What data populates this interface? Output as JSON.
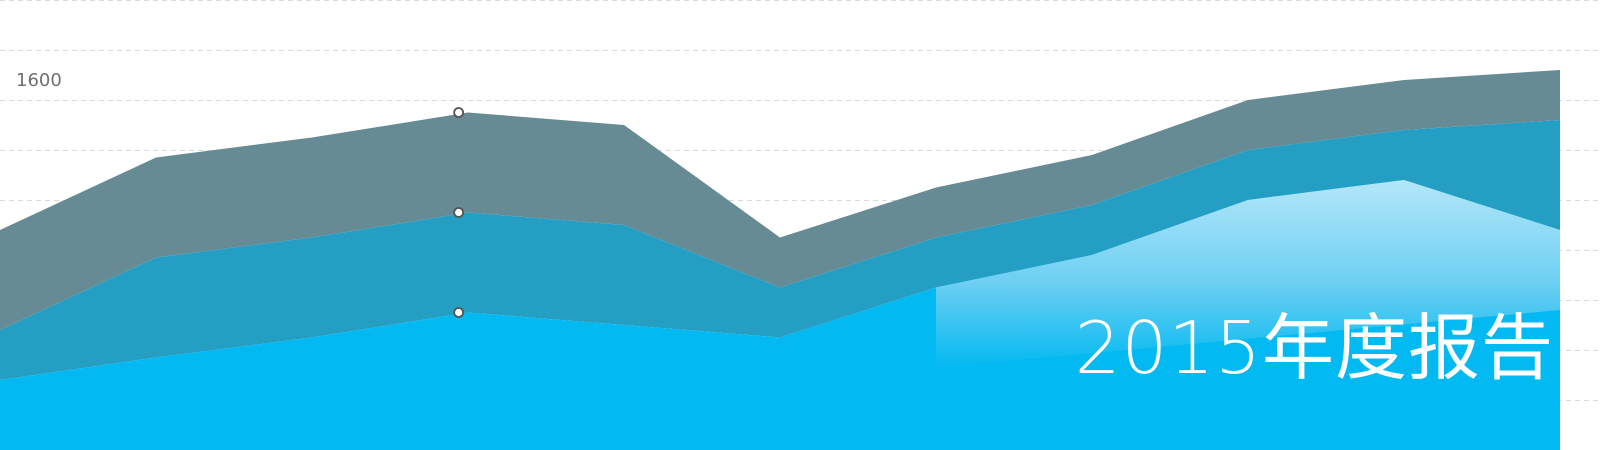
{
  "chart_data": {
    "type": "area",
    "stacked": true,
    "categories": [
      "",
      "",
      "",
      "",
      "",
      "",
      "",
      "",
      "",
      "",
      ""
    ],
    "x": [
      0,
      1,
      2,
      3,
      4,
      5,
      6,
      7,
      8,
      9,
      10
    ],
    "ylim": [
      0,
      1800
    ],
    "y_tick_step": 200,
    "y_tick_labels_shown": [
      1600
    ],
    "grid": true,
    "series": [
      {
        "values": [
          280,
          370,
          450,
          550,
          500,
          450,
          650,
          780,
          1000,
          1080,
          880
        ],
        "color": "#02b9f1"
      },
      {
        "values": [
          200,
          400,
          400,
          400,
          400,
          200,
          200,
          200,
          200,
          200,
          440
        ],
        "color": "#249fc3"
      },
      {
        "values": [
          400,
          400,
          400,
          400,
          400,
          200,
          200,
          200,
          200,
          200,
          200
        ],
        "color": "#668b94"
      }
    ],
    "markers": [
      {
        "x": 2.94,
        "y": 550
      },
      {
        "x": 2.94,
        "y": 950
      },
      {
        "x": 2.94,
        "y": 1350
      }
    ],
    "gradient_overlay": {
      "color_top": "#d3eefa",
      "color_bottom": "#02b9f1"
    }
  },
  "title": "2015年度报告"
}
